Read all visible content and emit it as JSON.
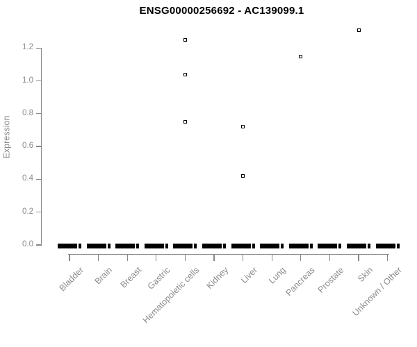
{
  "chart_data": {
    "type": "boxplot",
    "title": "ENSG00000256692 - AC139099.1",
    "ylabel": "Expression",
    "xlabel": "",
    "grid": false,
    "legend": null,
    "categories": [
      "Bladder",
      "Brain",
      "Breast",
      "Gastric",
      "Hematopoietic cells",
      "Kidney",
      "Liver",
      "Lung",
      "Pancreas",
      "Prostate",
      "Skin",
      "Unknown / Other"
    ],
    "yticks": [
      0.0,
      0.2,
      0.4,
      0.6,
      0.8,
      1.0,
      1.2
    ],
    "ytick_labels": [
      "0.0",
      "0.2",
      "0.4",
      "0.6",
      "0.8",
      "1.0",
      "1.2"
    ],
    "ylim": [
      0,
      1.32
    ],
    "series": [
      {
        "category": "Bladder",
        "median": 0,
        "q1": 0,
        "q3": 0,
        "whisker_low": 0,
        "whisker_high": 0,
        "outliers": []
      },
      {
        "category": "Brain",
        "median": 0,
        "q1": 0,
        "q3": 0,
        "whisker_low": 0,
        "whisker_high": 0,
        "outliers": []
      },
      {
        "category": "Breast",
        "median": 0,
        "q1": 0,
        "q3": 0,
        "whisker_low": 0,
        "whisker_high": 0,
        "outliers": []
      },
      {
        "category": "Gastric",
        "median": 0,
        "q1": 0,
        "q3": 0,
        "whisker_low": 0,
        "whisker_high": 0,
        "outliers": []
      },
      {
        "category": "Hematopoietic cells",
        "median": 0,
        "q1": 0,
        "q3": 0,
        "whisker_low": 0,
        "whisker_high": 0,
        "outliers": [
          0.75,
          1.04,
          1.25
        ]
      },
      {
        "category": "Kidney",
        "median": 0,
        "q1": 0,
        "q3": 0,
        "whisker_low": 0,
        "whisker_high": 0,
        "outliers": []
      },
      {
        "category": "Liver",
        "median": 0,
        "q1": 0,
        "q3": 0,
        "whisker_low": 0,
        "whisker_high": 0,
        "outliers": [
          0.42,
          0.72
        ]
      },
      {
        "category": "Lung",
        "median": 0,
        "q1": 0,
        "q3": 0,
        "whisker_low": 0,
        "whisker_high": 0,
        "outliers": []
      },
      {
        "category": "Pancreas",
        "median": 0,
        "q1": 0,
        "q3": 0,
        "whisker_low": 0,
        "whisker_high": 0,
        "outliers": [
          1.15
        ]
      },
      {
        "category": "Prostate",
        "median": 0,
        "q1": 0,
        "q3": 0,
        "whisker_low": 0,
        "whisker_high": 0,
        "outliers": []
      },
      {
        "category": "Skin",
        "median": 0,
        "q1": 0,
        "q3": 0,
        "whisker_low": 0,
        "whisker_high": 0,
        "outliers": [
          1.31
        ]
      },
      {
        "category": "Unknown / Other",
        "median": 0,
        "q1": 0,
        "q3": 0,
        "whisker_low": 0,
        "whisker_high": 0,
        "outliers": []
      }
    ],
    "colors": {
      "box": "#000000",
      "axis_line": "#878787",
      "tick_label": "#8b8b8b",
      "title": "#000000",
      "outlier_border": "#000000",
      "outlier_fill": "#ffffff"
    }
  }
}
